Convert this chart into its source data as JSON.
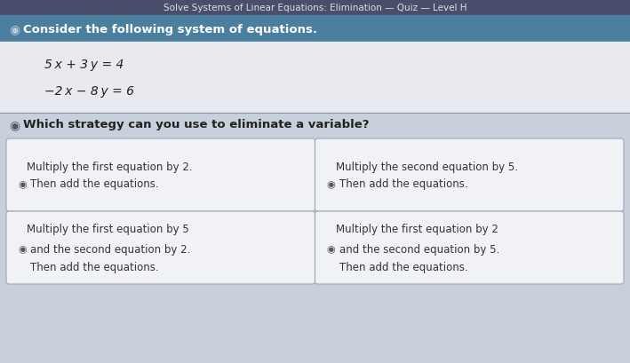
{
  "title_bar_color": "#4a4e6a",
  "title_text": "Solve Systems of Linear Equations: Elimination — Quiz — Level H",
  "title_text_color": "#e0e0e0",
  "title_font_size": 7.5,
  "header_bar_color": "#4a7fa0",
  "header_icon": "◉",
  "header_main": "Consider the following system of equations.",
  "header_text_color": "#ffffff",
  "header_font_size": 9.5,
  "bg_color": "#c8d0dc",
  "eq_area_color": "#e8eaf0",
  "eq1": "5 x + 3 y = 4",
  "eq2": "−2 x − 8 y = 6",
  "eq_font_size": 10,
  "eq_color": "#222222",
  "question_icon": "◉",
  "question_main": "Which strategy can you use to eliminate a variable?",
  "question_font_size": 9.5,
  "question_color": "#222222",
  "card_bg": "#f0f2f5",
  "card_border": "#a0a8b8",
  "card_area_bg": "#c8d0dc",
  "card_texts": [
    [
      "Multiply the first equation by 2.",
      "Then add the equations."
    ],
    [
      "Multiply the second equation by 5.",
      "Then add the equations."
    ],
    [
      "Multiply the first equation by 5",
      "and the second equation by 2.",
      "Then add the equations."
    ],
    [
      "Multiply the first equation by 2",
      "and the second equation by 5.",
      "Then add the equations."
    ]
  ],
  "card_icons": [
    "◉",
    "◉",
    "◉",
    "◉"
  ],
  "card_font_size": 8.5,
  "card_text_color": "#333333",
  "speaker_color": "#555566"
}
